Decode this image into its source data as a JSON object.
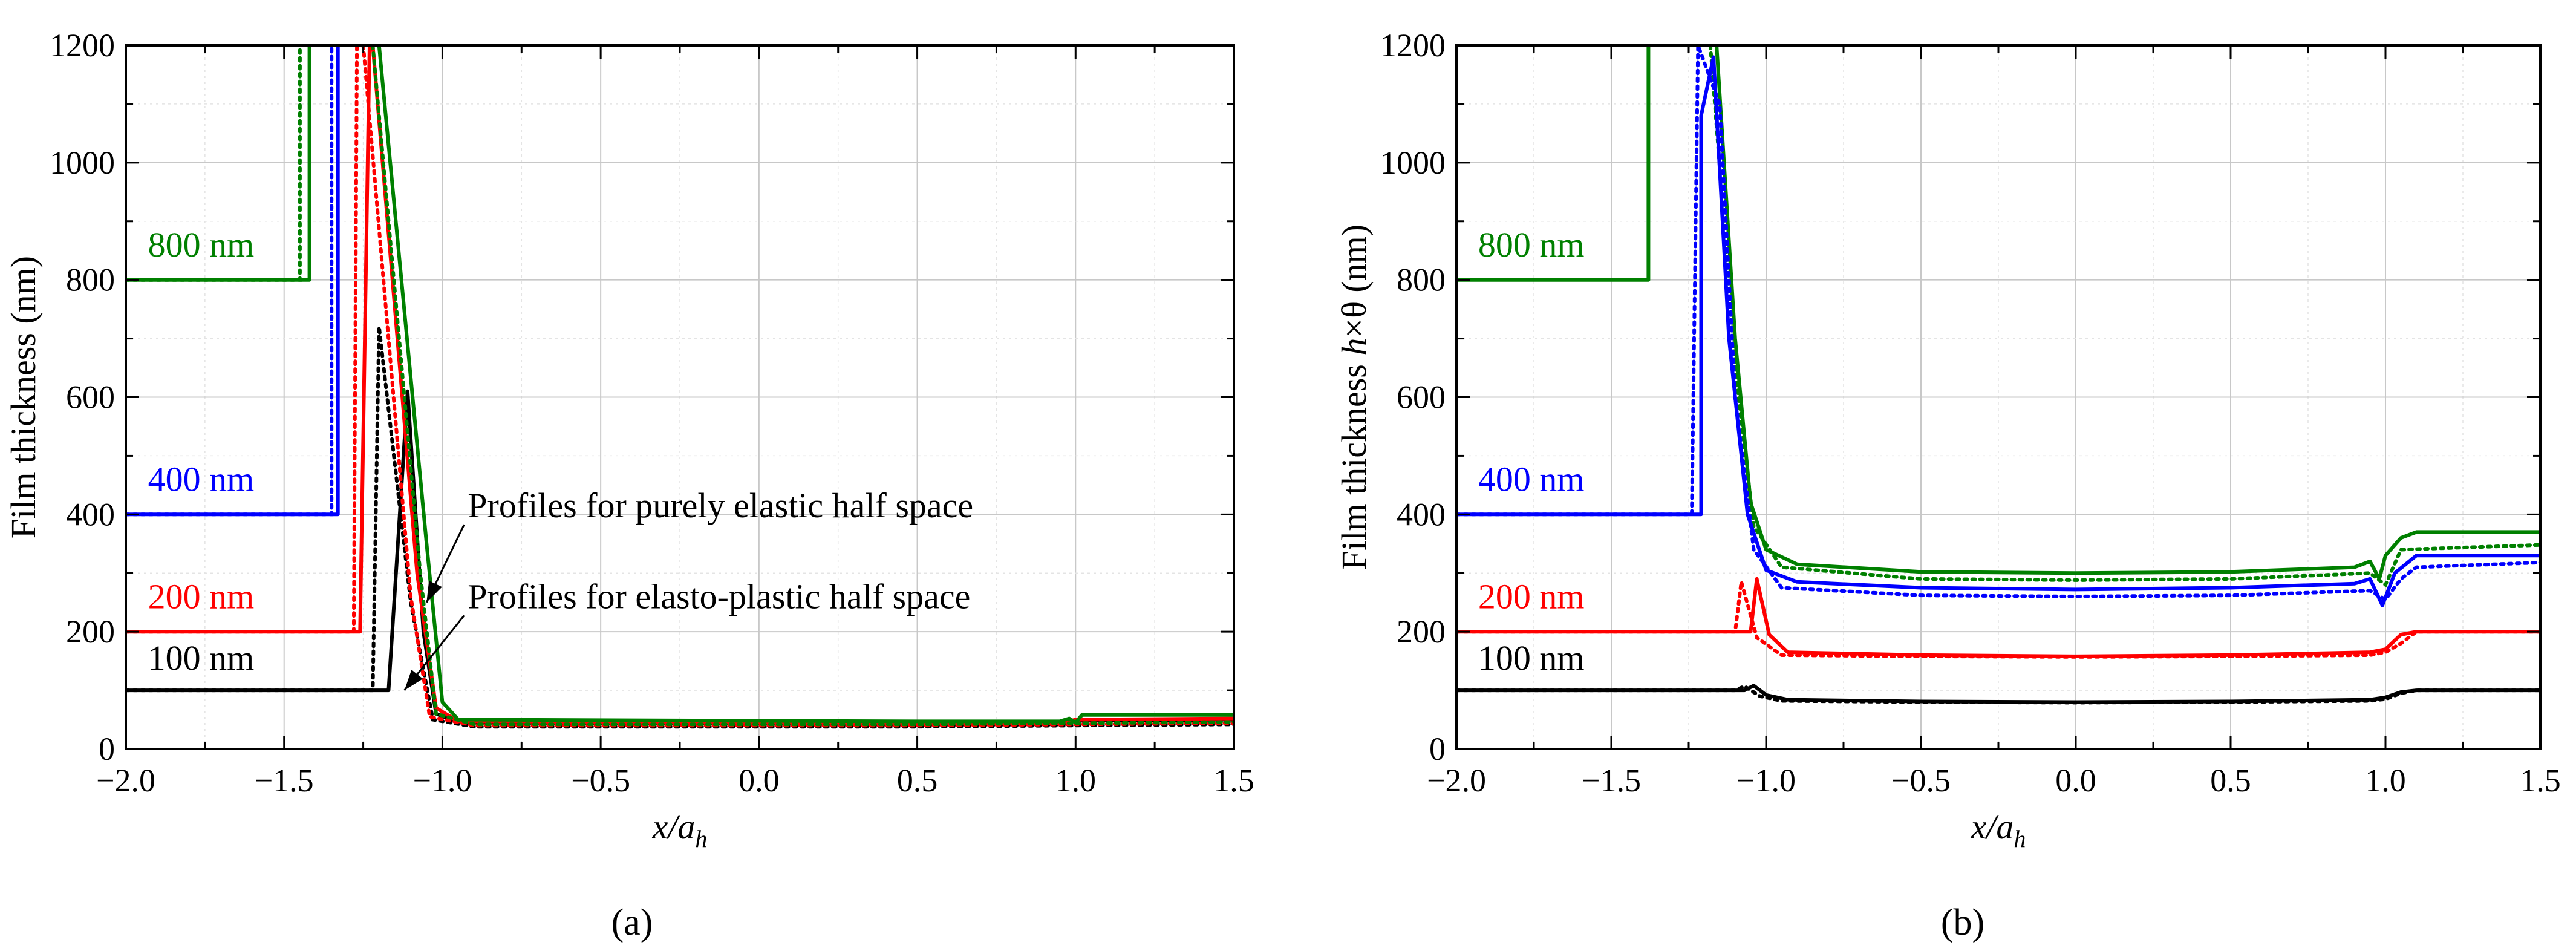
{
  "figure": {
    "caption_a": "(a)",
    "caption_b": "(b)"
  },
  "chart_data": [
    {
      "id": "a",
      "type": "line",
      "title": "",
      "xlabel": "x/a_h",
      "ylabel": "Film thickness (nm)",
      "xlim": [
        -2.0,
        1.5
      ],
      "ylim": [
        0,
        1200
      ],
      "xticks": [
        "−2.0",
        "−1.5",
        "−1.0",
        "−0.5",
        "0.0",
        "0.5",
        "1.0",
        "1.5"
      ],
      "xtick_values": [
        -2.0,
        -1.5,
        -1.0,
        -0.5,
        0.0,
        0.5,
        1.0,
        1.5
      ],
      "yticks": [
        "0",
        "200",
        "400",
        "600",
        "800",
        "1000",
        "1200"
      ],
      "ytick_values": [
        0,
        200,
        400,
        600,
        800,
        1000,
        1200
      ],
      "grid": true,
      "annotations": [
        {
          "text": "Profiles for purely elastic half space",
          "x": -0.92,
          "y": 395,
          "arrow_to": [
            -1.05,
            250
          ]
        },
        {
          "text": "Profiles for elasto-plastic half space",
          "x": -0.92,
          "y": 240,
          "arrow_to": [
            -1.12,
            100
          ]
        }
      ],
      "series": [
        {
          "name": "800 nm",
          "color": "#008000",
          "label_pos": [
            -1.93,
            840
          ],
          "solid": [
            [
              -2.0,
              800
            ],
            [
              -1.42,
              800
            ],
            [
              -1.42,
              1200
            ]
          ],
          "dotted": [
            [
              -2.0,
              800
            ],
            [
              -1.45,
              800
            ],
            [
              -1.45,
              1200
            ]
          ]
        },
        {
          "name": "400 nm",
          "color": "#0000ff",
          "label_pos": [
            -1.93,
            440
          ],
          "solid": [
            [
              -2.0,
              400
            ],
            [
              -1.33,
              400
            ],
            [
              -1.33,
              1200
            ]
          ],
          "dotted": [
            [
              -2.0,
              400
            ],
            [
              -1.35,
              400
            ],
            [
              -1.35,
              1200
            ]
          ]
        },
        {
          "name": "200 nm",
          "color": "#ff0000",
          "label_pos": [
            -1.93,
            240
          ],
          "solid": [
            [
              -2.0,
              200
            ],
            [
              -1.26,
              200
            ],
            [
              -1.23,
              1200
            ]
          ],
          "dotted": [
            [
              -2.0,
              200
            ],
            [
              -1.28,
              200
            ],
            [
              -1.27,
              1200
            ]
          ]
        },
        {
          "name": "100 nm",
          "color": "#000000",
          "label_pos": [
            -1.93,
            135
          ],
          "solid": [
            [
              -2.0,
              100
            ],
            [
              -1.17,
              100
            ],
            [
              -1.11,
              610
            ],
            [
              -1.06,
              200
            ],
            [
              -1.02,
              60
            ],
            [
              -0.95,
              45
            ],
            [
              0.5,
              42
            ],
            [
              0.95,
              42
            ],
            [
              1.0,
              48
            ],
            [
              1.5,
              50
            ]
          ],
          "dotted": [
            [
              -2.0,
              100
            ],
            [
              -1.22,
              100
            ],
            [
              -1.2,
              720
            ],
            [
              -1.1,
              250
            ],
            [
              -1.03,
              50
            ],
            [
              -0.9,
              38
            ],
            [
              0.5,
              38
            ],
            [
              1.0,
              40
            ],
            [
              1.5,
              42
            ]
          ]
        },
        {
          "name": "",
          "color": "#ff0000",
          "label_pos": null,
          "solid": [
            [
              -1.22,
              1200
            ],
            [
              -1.08,
              300
            ],
            [
              -1.02,
              70
            ],
            [
              -0.95,
              47
            ],
            [
              0.5,
              44
            ],
            [
              0.95,
              44
            ],
            [
              1.0,
              50
            ],
            [
              1.5,
              52
            ]
          ],
          "dotted": [
            [
              -1.25,
              1200
            ],
            [
              -1.1,
              260
            ],
            [
              -1.04,
              55
            ],
            [
              -0.9,
              40
            ],
            [
              0.5,
              40
            ],
            [
              1.0,
              42
            ],
            [
              1.5,
              44
            ]
          ]
        },
        {
          "name": "",
          "color": "#008000",
          "label_pos": null,
          "solid": [
            [
              -1.2,
              1200
            ],
            [
              -1.05,
              350
            ],
            [
              -1.0,
              80
            ],
            [
              -0.95,
              50
            ],
            [
              0.5,
              47
            ],
            [
              0.95,
              47
            ],
            [
              0.98,
              52
            ],
            [
              1.0,
              45
            ],
            [
              1.02,
              58
            ],
            [
              1.5,
              58
            ]
          ],
          "dotted": [
            [
              -1.22,
              1200
            ],
            [
              -1.07,
              300
            ],
            [
              -1.02,
              60
            ],
            [
              -0.9,
              42
            ],
            [
              0.5,
              42
            ],
            [
              1.0,
              44
            ],
            [
              1.5,
              46
            ]
          ]
        }
      ]
    },
    {
      "id": "b",
      "type": "line",
      "title": "",
      "xlabel": "x/a_h",
      "ylabel": "Film thickness h×θ (nm)",
      "xlim": [
        -2.0,
        1.5
      ],
      "ylim": [
        0,
        1200
      ],
      "xticks": [
        "−2.0",
        "−1.5",
        "−1.0",
        "−0.5",
        "0.0",
        "0.5",
        "1.0",
        "1.5"
      ],
      "xtick_values": [
        -2.0,
        -1.5,
        -1.0,
        -0.5,
        0.0,
        0.5,
        1.0,
        1.5
      ],
      "yticks": [
        "0",
        "200",
        "400",
        "600",
        "800",
        "1000",
        "1200"
      ],
      "ytick_values": [
        0,
        200,
        400,
        600,
        800,
        1000,
        1200
      ],
      "grid": true,
      "annotations": [],
      "series": [
        {
          "name": "800 nm",
          "color": "#008000",
          "label_pos": [
            -1.93,
            840
          ],
          "solid": [
            [
              -2.0,
              800
            ],
            [
              -1.38,
              800
            ],
            [
              -1.38,
              1200
            ],
            [
              -1.16,
              1200
            ],
            [
              -1.1,
              700
            ],
            [
              -1.05,
              420
            ],
            [
              -1.0,
              340
            ],
            [
              -0.9,
              315
            ],
            [
              -0.5,
              302
            ],
            [
              0.0,
              300
            ],
            [
              0.5,
              302
            ],
            [
              0.9,
              310
            ],
            [
              0.95,
              320
            ],
            [
              0.98,
              290
            ],
            [
              1.0,
              330
            ],
            [
              1.05,
              360
            ],
            [
              1.1,
              370
            ],
            [
              1.5,
              370
            ]
          ],
          "dotted": [
            [
              -1.18,
              1200
            ],
            [
              -1.1,
              650
            ],
            [
              -1.04,
              380
            ],
            [
              -0.95,
              310
            ],
            [
              -0.5,
              290
            ],
            [
              0.0,
              288
            ],
            [
              0.5,
              290
            ],
            [
              0.95,
              300
            ],
            [
              1.0,
              280
            ],
            [
              1.05,
              340
            ],
            [
              1.5,
              348
            ]
          ]
        },
        {
          "name": "400 nm",
          "color": "#0000ff",
          "label_pos": [
            -1.93,
            440
          ],
          "solid": [
            [
              -2.0,
              400
            ],
            [
              -1.21,
              400
            ],
            [
              -1.21,
              1080
            ],
            [
              -1.17,
              1180
            ],
            [
              -1.12,
              700
            ],
            [
              -1.06,
              400
            ],
            [
              -1.0,
              305
            ],
            [
              -0.9,
              285
            ],
            [
              -0.5,
              275
            ],
            [
              0.0,
              272
            ],
            [
              0.5,
              275
            ],
            [
              0.9,
              282
            ],
            [
              0.95,
              290
            ],
            [
              0.99,
              245
            ],
            [
              1.03,
              300
            ],
            [
              1.1,
              330
            ],
            [
              1.5,
              330
            ]
          ],
          "dotted": [
            [
              -2.0,
              400
            ],
            [
              -1.24,
              400
            ],
            [
              -1.22,
              1200
            ],
            [
              -1.15,
              1100
            ],
            [
              -1.1,
              600
            ],
            [
              -1.04,
              340
            ],
            [
              -0.95,
              275
            ],
            [
              -0.5,
              262
            ],
            [
              0.0,
              260
            ],
            [
              0.5,
              262
            ],
            [
              0.95,
              270
            ],
            [
              1.0,
              255
            ],
            [
              1.05,
              290
            ],
            [
              1.1,
              310
            ],
            [
              1.5,
              318
            ]
          ]
        },
        {
          "name": "200 nm",
          "color": "#ff0000",
          "label_pos": [
            -1.93,
            240
          ],
          "solid": [
            [
              -2.0,
              200
            ],
            [
              -1.05,
              200
            ],
            [
              -1.03,
              290
            ],
            [
              -0.99,
              195
            ],
            [
              -0.93,
              165
            ],
            [
              -0.5,
              160
            ],
            [
              0.0,
              158
            ],
            [
              0.5,
              160
            ],
            [
              0.95,
              165
            ],
            [
              1.0,
              170
            ],
            [
              1.05,
              195
            ],
            [
              1.1,
              200
            ],
            [
              1.5,
              200
            ]
          ],
          "dotted": [
            [
              -2.0,
              200
            ],
            [
              -1.1,
              200
            ],
            [
              -1.08,
              285
            ],
            [
              -1.03,
              190
            ],
            [
              -0.95,
              160
            ],
            [
              -0.5,
              158
            ],
            [
              0.0,
              157
            ],
            [
              0.5,
              158
            ],
            [
              0.95,
              160
            ],
            [
              1.0,
              165
            ],
            [
              1.05,
              180
            ],
            [
              1.1,
              200
            ],
            [
              1.5,
              200
            ]
          ]
        },
        {
          "name": "100 nm",
          "color": "#000000",
          "label_pos": [
            -1.93,
            135
          ],
          "solid": [
            [
              -2.0,
              100
            ],
            [
              -1.07,
              100
            ],
            [
              -1.04,
              108
            ],
            [
              -1.0,
              92
            ],
            [
              -0.93,
              84
            ],
            [
              -0.5,
              81
            ],
            [
              0.0,
              80
            ],
            [
              0.5,
              81
            ],
            [
              0.95,
              84
            ],
            [
              1.0,
              88
            ],
            [
              1.05,
              97
            ],
            [
              1.1,
              100
            ],
            [
              1.5,
              100
            ]
          ],
          "dotted": [
            [
              -2.0,
              100
            ],
            [
              -1.1,
              100
            ],
            [
              -1.07,
              107
            ],
            [
              -1.02,
              90
            ],
            [
              -0.95,
              82
            ],
            [
              -0.5,
              80
            ],
            [
              0.0,
              79
            ],
            [
              0.5,
              80
            ],
            [
              0.95,
              82
            ],
            [
              1.0,
              85
            ],
            [
              1.05,
              95
            ],
            [
              1.1,
              100
            ],
            [
              1.5,
              100
            ]
          ]
        }
      ]
    }
  ]
}
